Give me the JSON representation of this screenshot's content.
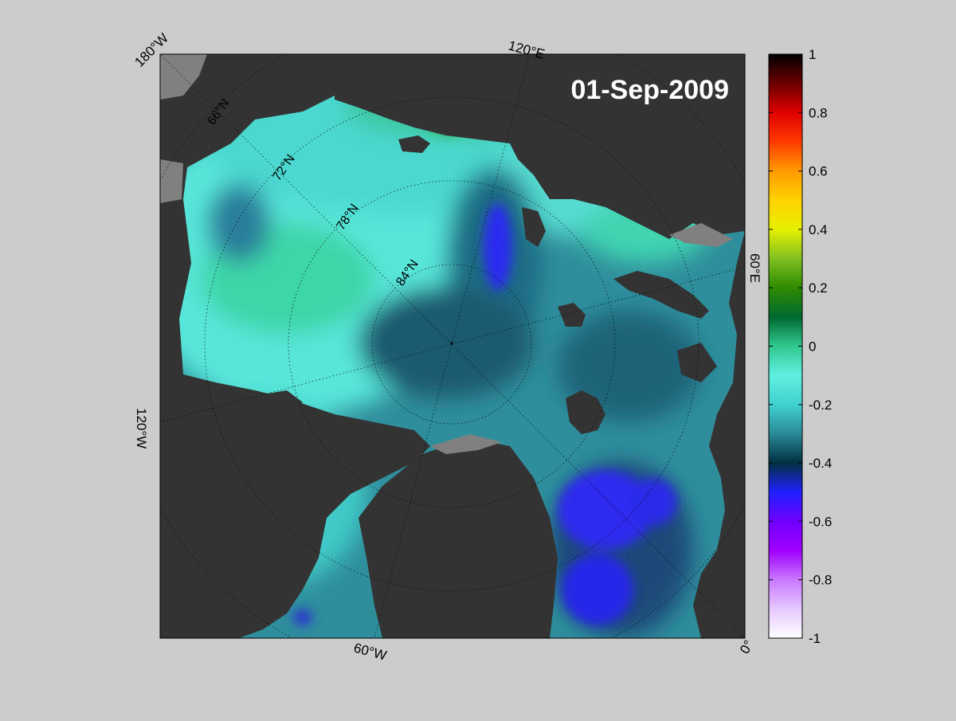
{
  "map": {
    "date_label": "01-Sep-2009",
    "corner_labels": {
      "top_left": "180°W",
      "top_center": "120°E",
      "left": "120°W",
      "right": "60°E",
      "bottom_center": "60°W",
      "bottom_right": "0°"
    },
    "latitude_labels": [
      "66°N",
      "72°N",
      "78°N",
      "84°N"
    ],
    "colors": {
      "background": "#cccccc",
      "land": "#333333",
      "no_data": "#808080",
      "frame": "#000000"
    }
  },
  "colorbar": {
    "min": -1,
    "max": 1,
    "tick_labels": [
      "1",
      "0.8",
      "0.6",
      "0.4",
      "0.2",
      "0",
      "-0.2",
      "-0.4",
      "-0.6",
      "-0.8",
      "-1"
    ],
    "stops": [
      {
        "value": 1.0,
        "color": "#000000"
      },
      {
        "value": 0.9,
        "color": "#6b0000"
      },
      {
        "value": 0.8,
        "color": "#e00000"
      },
      {
        "value": 0.7,
        "color": "#ff3a00"
      },
      {
        "value": 0.6,
        "color": "#ff9a00"
      },
      {
        "value": 0.5,
        "color": "#ffd200"
      },
      {
        "value": 0.4,
        "color": "#e6f000"
      },
      {
        "value": 0.3,
        "color": "#80c020"
      },
      {
        "value": 0.2,
        "color": "#2e8b00"
      },
      {
        "value": 0.1,
        "color": "#006a30"
      },
      {
        "value": 0.0,
        "color": "#30c890"
      },
      {
        "value": -0.1,
        "color": "#60f0e0"
      },
      {
        "value": -0.2,
        "color": "#40d0d0"
      },
      {
        "value": -0.3,
        "color": "#2a8a98"
      },
      {
        "value": -0.4,
        "color": "#003040"
      },
      {
        "value": -0.5,
        "color": "#2020ff"
      },
      {
        "value": -0.6,
        "color": "#7000ff"
      },
      {
        "value": -0.7,
        "color": "#a000ff"
      },
      {
        "value": -0.8,
        "color": "#c878ff"
      },
      {
        "value": -0.9,
        "color": "#e6c8ff"
      },
      {
        "value": -1.0,
        "color": "#ffffff"
      }
    ]
  }
}
